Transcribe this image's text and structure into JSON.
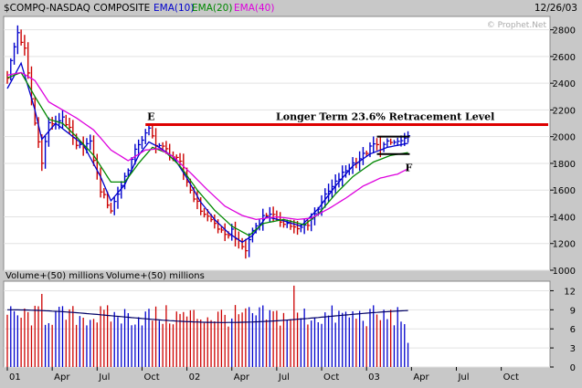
{
  "header": {
    "symbol": "$COMPQ-NASDAQ COMPOSITE",
    "indicators": [
      {
        "label": "EMA(10)",
        "color": "#0000cc"
      },
      {
        "label": "EMA(20)",
        "color": "#008800"
      },
      {
        "label": "EMA(40)",
        "color": "#dd00dd"
      }
    ],
    "date": "12/26/03",
    "watermark": "© Prophet.Net"
  },
  "colors": {
    "up": "#0000cc",
    "down": "#cc0000",
    "resistance": "#dd0000",
    "channel": "#000000",
    "volume_avg": "#000066",
    "panel_bg": "#ffffff",
    "frame_bg": "#c8c8c8"
  },
  "annotations": {
    "resistance_label": "Longer Term 23.6% Retracement Level",
    "resistance_value": 2090,
    "point_e": "E",
    "point_f": "F"
  },
  "chart_data": {
    "type": "line",
    "price": {
      "yticks": [
        1000,
        1200,
        1400,
        1600,
        1800,
        2000,
        2200,
        2400,
        2600,
        2800
      ],
      "ylim": [
        1000,
        2900
      ],
      "series_names": [
        "EMA(10)",
        "EMA(20)",
        "EMA(40)"
      ],
      "anchors": [
        [
          0,
          2450
        ],
        [
          3,
          2780
        ],
        [
          5,
          2650
        ],
        [
          8,
          2100
        ],
        [
          10,
          1820
        ],
        [
          12,
          2100
        ],
        [
          14,
          2100
        ],
        [
          16,
          2150
        ],
        [
          18,
          2050
        ],
        [
          20,
          1920
        ],
        [
          24,
          1950
        ],
        [
          27,
          1600
        ],
        [
          30,
          1450
        ],
        [
          34,
          1700
        ],
        [
          38,
          1950
        ],
        [
          41,
          2050
        ],
        [
          43,
          1950
        ],
        [
          46,
          1900
        ],
        [
          50,
          1800
        ],
        [
          53,
          1600
        ],
        [
          56,
          1450
        ],
        [
          60,
          1350
        ],
        [
          63,
          1250
        ],
        [
          65,
          1300
        ],
        [
          67,
          1200
        ],
        [
          69,
          1150
        ],
        [
          71,
          1300
        ],
        [
          74,
          1400
        ],
        [
          76,
          1430
        ],
        [
          78,
          1380
        ],
        [
          81,
          1350
        ],
        [
          84,
          1300
        ],
        [
          87,
          1350
        ],
        [
          89,
          1420
        ],
        [
          91,
          1520
        ],
        [
          94,
          1620
        ],
        [
          97,
          1720
        ],
        [
          100,
          1800
        ],
        [
          103,
          1860
        ],
        [
          106,
          1940
        ],
        [
          108,
          1920
        ],
        [
          110,
          1950
        ],
        [
          113,
          1960
        ],
        [
          115,
          1970
        ],
        [
          116,
          1990
        ]
      ],
      "ema_anchors": {
        "EMA(10)": [
          [
            0,
            2360
          ],
          [
            4,
            2550
          ],
          [
            8,
            2200
          ],
          [
            10,
            1980
          ],
          [
            14,
            2100
          ],
          [
            18,
            2020
          ],
          [
            22,
            1940
          ],
          [
            27,
            1700
          ],
          [
            30,
            1520
          ],
          [
            34,
            1640
          ],
          [
            38,
            1860
          ],
          [
            41,
            1960
          ],
          [
            44,
            1920
          ],
          [
            48,
            1850
          ],
          [
            52,
            1690
          ],
          [
            56,
            1510
          ],
          [
            60,
            1380
          ],
          [
            64,
            1280
          ],
          [
            68,
            1210
          ],
          [
            71,
            1260
          ],
          [
            75,
            1400
          ],
          [
            80,
            1370
          ],
          [
            85,
            1330
          ],
          [
            90,
            1460
          ],
          [
            95,
            1630
          ],
          [
            100,
            1780
          ],
          [
            105,
            1870
          ],
          [
            110,
            1920
          ],
          [
            116,
            1950
          ]
        ],
        "EMA(20)": [
          [
            0,
            2440
          ],
          [
            4,
            2480
          ],
          [
            8,
            2300
          ],
          [
            12,
            2130
          ],
          [
            16,
            2100
          ],
          [
            20,
            2000
          ],
          [
            25,
            1860
          ],
          [
            30,
            1660
          ],
          [
            34,
            1660
          ],
          [
            38,
            1800
          ],
          [
            42,
            1920
          ],
          [
            46,
            1880
          ],
          [
            50,
            1780
          ],
          [
            55,
            1600
          ],
          [
            60,
            1450
          ],
          [
            65,
            1330
          ],
          [
            70,
            1260
          ],
          [
            74,
            1350
          ],
          [
            80,
            1380
          ],
          [
            86,
            1340
          ],
          [
            90,
            1420
          ],
          [
            95,
            1570
          ],
          [
            100,
            1700
          ],
          [
            106,
            1810
          ],
          [
            111,
            1860
          ],
          [
            116,
            1880
          ]
        ],
        "EMA(40)": [
          [
            0,
            2460
          ],
          [
            4,
            2480
          ],
          [
            8,
            2420
          ],
          [
            12,
            2260
          ],
          [
            16,
            2200
          ],
          [
            20,
            2140
          ],
          [
            25,
            2050
          ],
          [
            30,
            1900
          ],
          [
            35,
            1820
          ],
          [
            40,
            1900
          ],
          [
            44,
            1910
          ],
          [
            48,
            1850
          ],
          [
            53,
            1730
          ],
          [
            58,
            1600
          ],
          [
            63,
            1480
          ],
          [
            68,
            1410
          ],
          [
            72,
            1380
          ],
          [
            78,
            1400
          ],
          [
            84,
            1380
          ],
          [
            88,
            1390
          ],
          [
            93,
            1460
          ],
          [
            98,
            1540
          ],
          [
            103,
            1630
          ],
          [
            108,
            1690
          ],
          [
            113,
            1720
          ],
          [
            116,
            1760
          ]
        ]
      }
    },
    "volume": {
      "title": "Volume+(50) millions",
      "yticks": [
        0,
        3,
        6,
        9,
        12
      ],
      "ylim": [
        0,
        13.5
      ],
      "average": 8.0,
      "notable_bars": [
        [
          10,
          11.5
        ],
        [
          83,
          12.8
        ]
      ]
    },
    "x_axis": {
      "labels": [
        {
          "text": "01",
          "week": 0
        },
        {
          "text": "Apr",
          "week": 13
        },
        {
          "text": "Jul",
          "week": 26
        },
        {
          "text": "Oct",
          "week": 39
        },
        {
          "text": "02",
          "week": 52
        },
        {
          "text": "Apr",
          "week": 65
        },
        {
          "text": "Jul",
          "week": 78
        },
        {
          "text": "Oct",
          "week": 91
        },
        {
          "text": "03",
          "week": 104
        },
        {
          "text": "Apr",
          "week": 117
        },
        {
          "text": "Jul",
          "week": 130
        },
        {
          "text": "Oct",
          "week": 143
        }
      ],
      "weeks": 156
    }
  }
}
